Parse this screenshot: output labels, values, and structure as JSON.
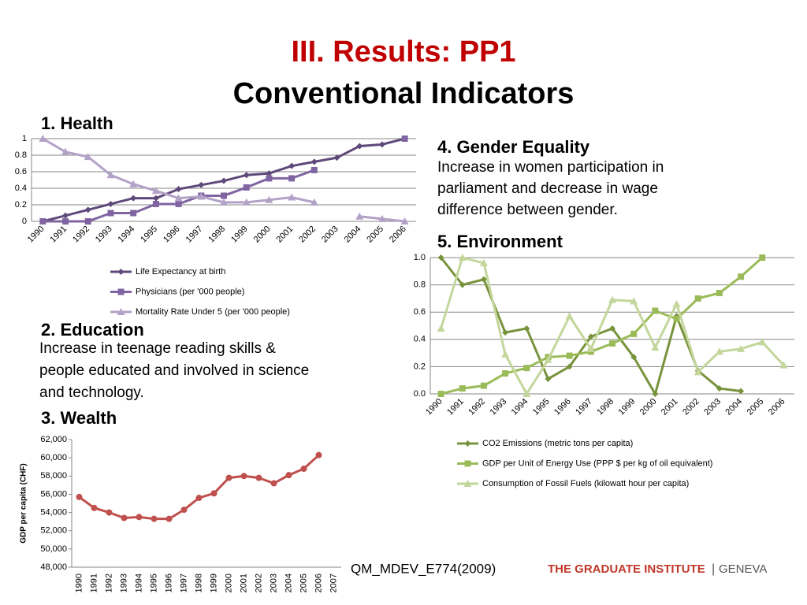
{
  "slide": {
    "title": "III. Results: PP1",
    "subtitle": "Conventional Indicators",
    "sections": [
      {
        "heading": "1. Health"
      },
      {
        "heading": "2. Education",
        "text": [
          "Increase in teenage reading skills &",
          "people educated and involved in science",
          "and technology."
        ]
      },
      {
        "heading": "3. Wealth"
      },
      {
        "heading": "4. Gender Equality",
        "text": [
          "Increase in women participation in",
          "parliament and decrease in wage",
          "difference between gender."
        ]
      },
      {
        "heading": "5. Environment"
      }
    ],
    "footer": "QM_MDEV_E774(2009)",
    "logo": {
      "name": "THE GRADUATE INSTITUTE",
      "separator": "|",
      "city": "GENEVA"
    }
  },
  "chart_data": [
    {
      "type": "line",
      "grid": true,
      "legend": "bottom",
      "categories": [
        "1990",
        "1991",
        "1992",
        "1993",
        "1994",
        "1995",
        "1996",
        "1997",
        "1998",
        "1999",
        "2000",
        "2001",
        "2002",
        "2003",
        "2004",
        "2005",
        "2006"
      ],
      "ylim": [
        0,
        1
      ],
      "yticks": [
        0,
        0.2,
        0.4,
        0.6,
        0.8,
        1
      ],
      "series": [
        {
          "name": "Life Expectancy at birth",
          "color": "#5f497a",
          "marker": "diamond",
          "values": [
            0,
            0.07,
            0.14,
            0.21,
            0.28,
            0.28,
            0.39,
            0.44,
            0.49,
            0.56,
            0.58,
            0.67,
            0.72,
            0.77,
            0.91,
            0.93,
            1.0
          ]
        },
        {
          "name": "Physicians (per '000 people)",
          "color": "#8064a2",
          "marker": "square",
          "values": [
            0,
            0,
            0,
            0.1,
            0.1,
            0.21,
            0.21,
            0.31,
            0.31,
            0.41,
            0.52,
            0.52,
            0.62,
            null,
            null,
            null,
            1.0
          ]
        },
        {
          "name": "Mortality Rate Under 5 (per '000 people)",
          "color": "#b3a2c7",
          "marker": "triangle",
          "values": [
            1.0,
            0.84,
            0.78,
            0.56,
            0.45,
            0.37,
            0.28,
            0.3,
            0.23,
            0.23,
            0.26,
            0.29,
            0.23,
            null,
            0.06,
            0.03,
            0
          ]
        }
      ]
    },
    {
      "type": "line",
      "grid": true,
      "legend": "bottom",
      "categories": [
        "1990",
        "1991",
        "1992",
        "1993",
        "1994",
        "1995",
        "1996",
        "1997",
        "1998",
        "1999",
        "2000",
        "2001",
        "2002",
        "2003",
        "2004",
        "2005",
        "2006"
      ],
      "ylim": [
        0,
        1
      ],
      "yticks": [
        {
          "value": 0,
          "label": "0.0"
        },
        {
          "value": 0.2,
          "label": "0.2"
        },
        {
          "value": 0.4,
          "label": "0.4"
        },
        {
          "value": 0.6,
          "label": "0.6"
        },
        {
          "value": 0.8,
          "label": "0.8"
        },
        {
          "value": 1,
          "label": "1.0"
        }
      ],
      "series": [
        {
          "name": "CO2 Emissions (metric tons per capita)",
          "color": "#77933c",
          "marker": "diamond",
          "values": [
            1.0,
            0.8,
            0.84,
            0.45,
            0.48,
            0.11,
            0.2,
            0.42,
            0.48,
            0.27,
            0.0,
            0.57,
            0.17,
            0.04,
            0.02,
            null,
            null
          ]
        },
        {
          "name": "GDP per Unit of Energy Use (PPP $ per kg of oil equivalent)",
          "color": "#9bbb59",
          "marker": "square",
          "values": [
            0,
            0.04,
            0.06,
            0.15,
            0.19,
            0.27,
            0.28,
            0.31,
            0.37,
            0.44,
            0.61,
            0.55,
            0.7,
            0.74,
            0.86,
            1.0,
            null
          ]
        },
        {
          "name": "Consumption of Fossil Fuels (kilowatt hour per capita)",
          "color": "#c3d69b",
          "marker": "triangle",
          "values": [
            0.48,
            1.0,
            0.96,
            0.29,
            0.0,
            0.25,
            0.57,
            0.33,
            0.69,
            0.68,
            0.34,
            0.66,
            0.16,
            0.31,
            0.33,
            0.38,
            0.21
          ]
        }
      ]
    },
    {
      "type": "line",
      "grid": false,
      "ylabel": "GDP per capita (CHF)",
      "categories": [
        "1990",
        "1991",
        "1992",
        "1993",
        "1994",
        "1995",
        "1996",
        "1997",
        "1998",
        "1999",
        "2000",
        "2001",
        "2002",
        "2003",
        "2004",
        "2005",
        "2006",
        "2007"
      ],
      "ylim": [
        48000,
        62000
      ],
      "yticks": [
        {
          "value": 48000,
          "label": "48,000"
        },
        {
          "value": 50000,
          "label": "50,000"
        },
        {
          "value": 52000,
          "label": "52,000"
        },
        {
          "value": 54000,
          "label": "54,000"
        },
        {
          "value": 56000,
          "label": "56,000"
        },
        {
          "value": 58000,
          "label": "58,000"
        },
        {
          "value": 60000,
          "label": "60,000"
        },
        {
          "value": 62000,
          "label": "62,000"
        }
      ],
      "series": [
        {
          "name": "GDP per capita",
          "color": "#c0504d",
          "marker": "circle",
          "values": [
            55700,
            54500,
            54000,
            53400,
            53500,
            53300,
            53300,
            54300,
            55600,
            56100,
            57800,
            58000,
            57800,
            57200,
            58100,
            58800,
            60300,
            null
          ]
        }
      ]
    }
  ]
}
